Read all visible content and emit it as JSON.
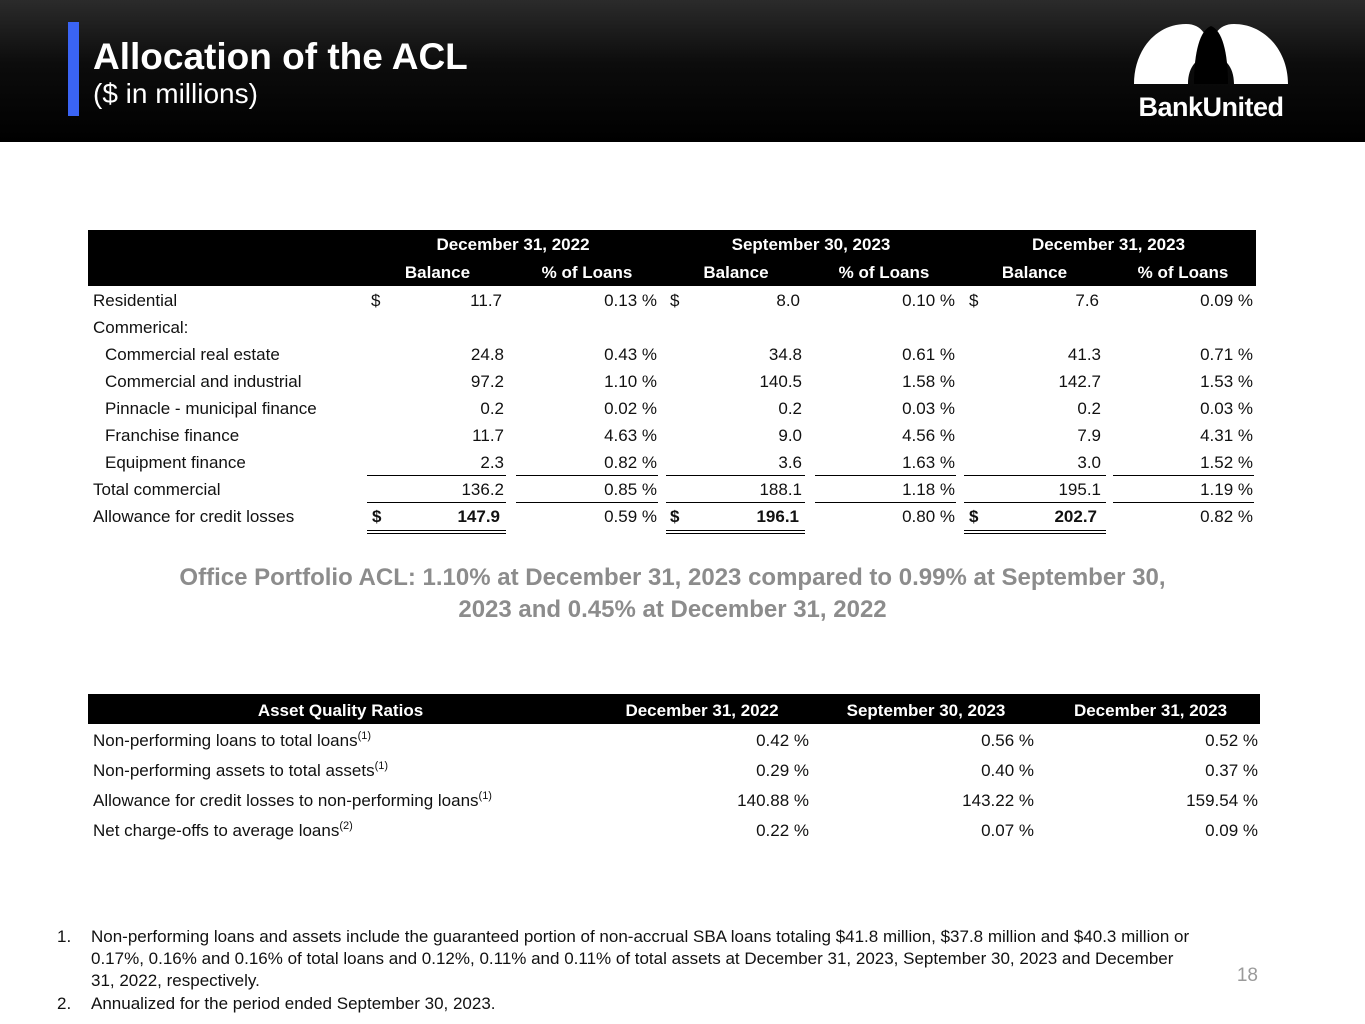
{
  "header": {
    "title": "Allocation of the ACL",
    "subtitle": "($ in millions)",
    "logo_text": "BankUnited"
  },
  "acl_table": {
    "periods": [
      "December 31, 2022",
      "September 30, 2023",
      "December 31, 2023"
    ],
    "subheaders": [
      "Balance",
      "% of Loans"
    ],
    "rows": [
      {
        "label": "Residential",
        "values": [
          [
            "$",
            "11.7",
            "0.13 %"
          ],
          [
            "$",
            "8.0",
            "0.10 %"
          ],
          [
            "$",
            "7.6",
            "0.09 %"
          ]
        ]
      },
      {
        "label": "Commerical:"
      },
      {
        "label": "Commercial real estate",
        "values": [
          [
            "",
            "24.8",
            "0.43 %"
          ],
          [
            "",
            "34.8",
            "0.61 %"
          ],
          [
            "",
            "41.3",
            "0.71 %"
          ]
        ]
      },
      {
        "label": "Commercial and industrial",
        "values": [
          [
            "",
            "97.2",
            "1.10 %"
          ],
          [
            "",
            "140.5",
            "1.58 %"
          ],
          [
            "",
            "142.7",
            "1.53 %"
          ]
        ]
      },
      {
        "label": "Pinnacle - municipal finance",
        "values": [
          [
            "",
            "0.2",
            "0.02 %"
          ],
          [
            "",
            "0.2",
            "0.03 %"
          ],
          [
            "",
            "0.2",
            "0.03 %"
          ]
        ]
      },
      {
        "label": "Franchise finance",
        "values": [
          [
            "",
            "11.7",
            "4.63 %"
          ],
          [
            "",
            "9.0",
            "4.56 %"
          ],
          [
            "",
            "7.9",
            "4.31 %"
          ]
        ]
      },
      {
        "label": "Equipment finance",
        "values": [
          [
            "",
            "2.3",
            "0.82 %"
          ],
          [
            "",
            "3.6",
            "1.63 %"
          ],
          [
            "",
            "3.0",
            "1.52 %"
          ]
        ]
      },
      {
        "label": "Total commercial",
        "values": [
          [
            "",
            "136.2",
            "0.85 %"
          ],
          [
            "",
            "188.1",
            "1.18 %"
          ],
          [
            "",
            "195.1",
            "1.19 %"
          ]
        ]
      },
      {
        "label": "Allowance for credit losses",
        "values": [
          [
            "$",
            "147.9",
            "0.59 %"
          ],
          [
            "$",
            "196.1",
            "0.80 %"
          ],
          [
            "$",
            "202.7",
            "0.82 %"
          ]
        ]
      }
    ]
  },
  "office_note": "Office Portfolio ACL:  1.10% at December 31, 2023 compared to 0.99% at September 30, 2023 and 0.45% at December 31, 2022",
  "asset_quality": {
    "header": "Asset Quality Ratios",
    "periods": [
      "December 31, 2022",
      "September 30, 2023",
      "December 31, 2023"
    ],
    "rows": [
      {
        "label": "Non-performing loans to total loans",
        "note": "(1)",
        "values": [
          "0.42 %",
          "0.56 %",
          "0.52 %"
        ]
      },
      {
        "label": "Non-performing assets to total assets",
        "note": "(1)",
        "values": [
          "0.29 %",
          "0.40 %",
          "0.37 %"
        ]
      },
      {
        "label": "Allowance for credit losses to non-performing loans",
        "note": "(1)",
        "values": [
          "140.88 %",
          "143.22 %",
          "159.54 %"
        ]
      },
      {
        "label": "Net charge-offs to average loans",
        "note": "(2)",
        "values": [
          "0.22 %",
          "0.07 %",
          "0.09 %"
        ]
      }
    ]
  },
  "footnotes": [
    {
      "num": "1.",
      "text": "Non-performing loans and assets include the guaranteed portion of non-accrual SBA loans totaling $41.8 million, $37.8 million and $40.3 million or 0.17%, 0.16% and 0.16% of total loans and 0.12%, 0.11% and 0.11% of total assets at December 31, 2023, September 30, 2023 and December 31, 2022, respectively."
    },
    {
      "num": "2.",
      "text": "Annualized for the period ended September 30, 2023."
    }
  ],
  "page_number": "18",
  "colors": {
    "accent": "#3a64f4",
    "header_bg": "#000000",
    "note_gray": "#8c8c8c"
  }
}
